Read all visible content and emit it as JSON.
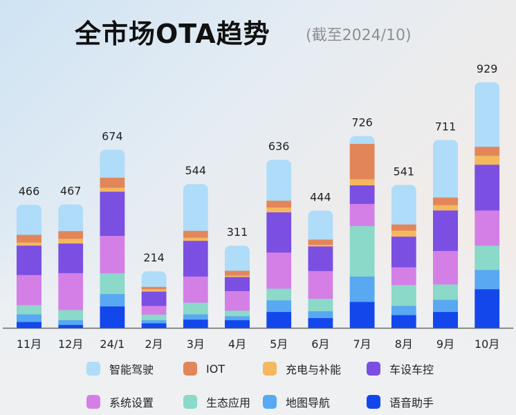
{
  "chart_data": {
    "type": "bar",
    "stacked": true,
    "title": "全市场OTA趋势",
    "subtitle": "(截至2024/10)",
    "xlabel": "",
    "ylabel": "",
    "categories": [
      "11月",
      "12月",
      "24/1",
      "2月",
      "3月",
      "4月",
      "5月",
      "6月",
      "7月",
      "8月",
      "9月",
      "10月"
    ],
    "totals": [
      466,
      467,
      674,
      214,
      544,
      311,
      636,
      444,
      726,
      541,
      711,
      929
    ],
    "series": [
      {
        "name": "语音助手",
        "color": "#1347ec",
        "values": [
          23,
          12,
          82,
          18,
          32,
          30,
          61,
          38,
          99,
          49,
          61,
          147
        ]
      },
      {
        "name": "地图导航",
        "color": "#58a8f2",
        "values": [
          29,
          18,
          47,
          12,
          20,
          15,
          44,
          26,
          96,
          35,
          46,
          73
        ]
      },
      {
        "name": "生态应用",
        "color": "#8ad9c9",
        "values": [
          35,
          38,
          79,
          21,
          44,
          21,
          44,
          47,
          191,
          79,
          58,
          92
        ]
      },
      {
        "name": "系统设置",
        "color": "#d47fe6",
        "values": [
          114,
          140,
          141,
          33,
          99,
          74,
          137,
          105,
          84,
          67,
          127,
          133
        ]
      },
      {
        "name": "车设车控",
        "color": "#7a4fe2",
        "values": [
          111,
          112,
          167,
          54,
          135,
          53,
          152,
          93,
          70,
          116,
          153,
          173
        ]
      },
      {
        "name": "充电与补能",
        "color": "#f4b85f",
        "values": [
          12,
          18,
          15,
          9,
          12,
          6,
          18,
          6,
          23,
          23,
          20,
          34
        ]
      },
      {
        "name": "IOT",
        "color": "#e2865a",
        "values": [
          29,
          29,
          38,
          9,
          26,
          18,
          26,
          20,
          134,
          23,
          29,
          34
        ]
      },
      {
        "name": "智能驾驶",
        "color": "#afdcf8",
        "values": [
          113,
          100,
          105,
          58,
          176,
          94,
          154,
          109,
          29,
          149,
          217,
          243
        ]
      }
    ],
    "ylim": [
      0,
      929
    ],
    "grid": false,
    "legend_position": "bottom",
    "legend_order": [
      "智能驾驶",
      "IOT",
      "充电与补能",
      "车设车控",
      "系统设置",
      "生态应用",
      "地图导航",
      "语音助手"
    ]
  }
}
